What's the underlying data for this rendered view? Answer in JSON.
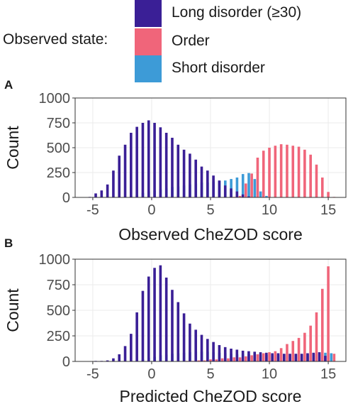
{
  "legend": {
    "title": "Observed state:",
    "items": [
      {
        "label": "Long disorder (≥30)",
        "color": "#3a1f96"
      },
      {
        "label": "Order",
        "color": "#f0657a"
      },
      {
        "label": "Short disorder",
        "color": "#3d9bd7"
      }
    ]
  },
  "colors": {
    "panel_background": "#ffffff",
    "grid": "#ebebeb",
    "axis_text": "#4d4d4d"
  },
  "chart_data": [
    {
      "panel": "A",
      "type": "bar",
      "xlabel": "Observed CheZOD score",
      "ylabel": "Count",
      "xlim": [
        -6.5,
        16.5
      ],
      "ylim": [
        0,
        1000
      ],
      "xticks": [
        -5,
        0,
        5,
        10,
        15
      ],
      "xtick_labels": [
        "-5",
        "0",
        "5",
        "10",
        "15"
      ],
      "yticks": [
        0,
        250,
        500,
        750,
        1000
      ],
      "ytick_labels": [
        "0",
        "250",
        "500",
        "750",
        "1000"
      ],
      "grid": true,
      "legend_position": "top",
      "x": [
        -5.5,
        -5,
        -4.5,
        -4,
        -3.5,
        -3,
        -2.5,
        -2,
        -1.5,
        -1,
        -0.5,
        0,
        0.5,
        1,
        1.5,
        2,
        2.5,
        3,
        3.5,
        4,
        4.5,
        5,
        5.5,
        6,
        6.5,
        7,
        7.5,
        8,
        8.5,
        9,
        9.5,
        10,
        10.5,
        11,
        11.5,
        12,
        12.5,
        13,
        13.5,
        14,
        14.5,
        15,
        15.5
      ],
      "series": [
        {
          "name": "Long disorder (≥30)",
          "color": "#3a1f96",
          "values": [
            0,
            5,
            40,
            70,
            130,
            270,
            420,
            530,
            650,
            710,
            750,
            775,
            750,
            705,
            650,
            600,
            530,
            480,
            440,
            380,
            310,
            270,
            220,
            170,
            120,
            90,
            60,
            30,
            10,
            0,
            0,
            0,
            0,
            0,
            0,
            0,
            0,
            0,
            0,
            0,
            0,
            0,
            0
          ]
        },
        {
          "name": "Order",
          "color": "#f0657a",
          "values": [
            0,
            0,
            0,
            0,
            0,
            0,
            0,
            0,
            0,
            0,
            0,
            0,
            0,
            0,
            0,
            0,
            0,
            0,
            0,
            0,
            0,
            0,
            0,
            0,
            0,
            5,
            15,
            140,
            240,
            400,
            470,
            500,
            520,
            535,
            530,
            520,
            510,
            480,
            430,
            330,
            200,
            55,
            5
          ]
        },
        {
          "name": "Short disorder",
          "color": "#3d9bd7",
          "values": [
            0,
            0,
            0,
            0,
            0,
            0,
            5,
            10,
            25,
            45,
            60,
            70,
            80,
            90,
            105,
            110,
            120,
            130,
            140,
            150,
            150,
            160,
            165,
            170,
            185,
            200,
            235,
            245,
            185,
            60,
            15,
            0,
            0,
            0,
            0,
            0,
            0,
            0,
            0,
            0,
            0,
            0,
            0
          ]
        }
      ]
    },
    {
      "panel": "B",
      "type": "bar",
      "xlabel": "Predicted CheZOD score",
      "ylabel": "Count",
      "xlim": [
        -6.5,
        16.5
      ],
      "ylim": [
        0,
        1000
      ],
      "xticks": [
        -5,
        0,
        5,
        10,
        15
      ],
      "xtick_labels": [
        "-5",
        "0",
        "5",
        "10",
        "15"
      ],
      "yticks": [
        0,
        250,
        500,
        750,
        1000
      ],
      "ytick_labels": [
        "0",
        "250",
        "500",
        "750",
        "1000"
      ],
      "grid": true,
      "x": [
        -5.5,
        -5,
        -4.5,
        -4,
        -3.5,
        -3,
        -2.5,
        -2,
        -1.5,
        -1,
        -0.5,
        0,
        0.5,
        1,
        1.5,
        2,
        2.5,
        3,
        3.5,
        4,
        4.5,
        5,
        5.5,
        6,
        6.5,
        7,
        7.5,
        8,
        8.5,
        9,
        9.5,
        10,
        10.5,
        11,
        11.5,
        12,
        12.5,
        13,
        13.5,
        14,
        14.5,
        15,
        15.5
      ],
      "series": [
        {
          "name": "Long disorder (≥30)",
          "color": "#3a1f96",
          "values": [
            0,
            0,
            5,
            5,
            10,
            30,
            70,
            150,
            270,
            480,
            690,
            830,
            915,
            940,
            820,
            700,
            580,
            470,
            370,
            310,
            260,
            220,
            190,
            160,
            140,
            125,
            115,
            105,
            100,
            95,
            90,
            85,
            80,
            80,
            75,
            75,
            75,
            75,
            80,
            85,
            90,
            55,
            0
          ]
        },
        {
          "name": "Order",
          "color": "#f0657a",
          "values": [
            0,
            0,
            0,
            0,
            0,
            0,
            0,
            0,
            0,
            0,
            0,
            0,
            0,
            0,
            0,
            0,
            0,
            5,
            5,
            10,
            10,
            20,
            20,
            30,
            30,
            40,
            40,
            50,
            60,
            70,
            80,
            90,
            100,
            130,
            170,
            200,
            230,
            280,
            350,
            480,
            710,
            930,
            75
          ]
        },
        {
          "name": "Short disorder",
          "color": "#3d9bd7",
          "values": [
            0,
            0,
            0,
            0,
            0,
            0,
            0,
            5,
            10,
            20,
            35,
            45,
            60,
            65,
            75,
            80,
            85,
            90,
            95,
            95,
            95,
            90,
            85,
            80,
            75,
            70,
            70,
            70,
            70,
            65,
            65,
            65,
            65,
            70,
            70,
            70,
            70,
            70,
            75,
            75,
            85,
            80,
            0
          ]
        }
      ]
    }
  ]
}
